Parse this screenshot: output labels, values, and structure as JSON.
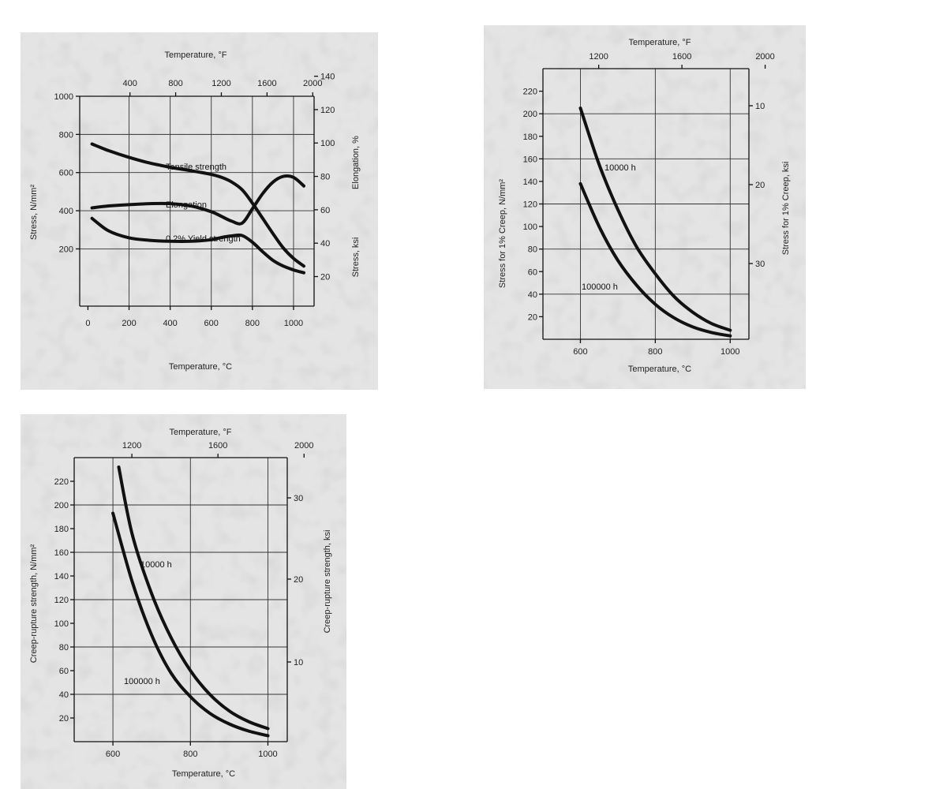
{
  "chart_data": [
    {
      "type": "line",
      "axes": {
        "x_bottom": {
          "label": "Temperature, °C",
          "range": [
            -40,
            1100
          ],
          "ticks": [
            "0",
            "200",
            "400",
            "600",
            "800",
            "1000"
          ]
        },
        "x_top": {
          "label": "Temperature, °F",
          "ticks": [
            "400",
            "800",
            "1200",
            "1600",
            "2000"
          ]
        },
        "y_left": {
          "label": "Stress, N/mm²",
          "range": [
            -100,
            1000
          ],
          "ticks": [
            "200",
            "400",
            "600",
            "800",
            "1000"
          ]
        },
        "y_right": {
          "label_elongation": "Elongation, %",
          "label_stress": "Stress, ksi",
          "ticks": [
            "20",
            "40",
            "60",
            "80",
            "100",
            "120",
            "140"
          ]
        }
      },
      "grid": true,
      "series": [
        {
          "name": "Tensile strength",
          "axis": "left",
          "x": [
            20,
            100,
            200,
            300,
            400,
            500,
            600,
            650,
            700,
            750,
            800,
            850,
            900,
            950,
            1000,
            1050
          ],
          "y": [
            750,
            715,
            680,
            650,
            628,
            610,
            590,
            575,
            550,
            510,
            440,
            360,
            280,
            205,
            150,
            110
          ]
        },
        {
          "name": "Elongation",
          "axis": "left",
          "x": [
            20,
            100,
            200,
            300,
            400,
            500,
            600,
            650,
            700,
            750,
            800,
            850,
            900,
            950,
            1000,
            1050
          ],
          "y": [
            415,
            425,
            432,
            437,
            437,
            425,
            395,
            370,
            345,
            335,
            410,
            490,
            550,
            580,
            575,
            530
          ]
        },
        {
          "name": "0.2% Yield strength",
          "axis": "left",
          "x": [
            20,
            100,
            200,
            300,
            400,
            500,
            600,
            650,
            700,
            750,
            800,
            850,
            900,
            950,
            1000,
            1050
          ],
          "y": [
            360,
            295,
            258,
            245,
            240,
            240,
            248,
            260,
            268,
            270,
            235,
            185,
            140,
            110,
            90,
            75
          ]
        }
      ]
    },
    {
      "type": "line",
      "axes": {
        "x_bottom": {
          "label": "Temperature, °C",
          "range": [
            500,
            1050
          ],
          "ticks": [
            "600",
            "800",
            "1000"
          ]
        },
        "x_top": {
          "label": "Temperature, °F",
          "ticks": [
            "1200",
            "1600",
            "2000"
          ]
        },
        "y_left": {
          "label": "Stress for 1% Creep, N/mm²",
          "range": [
            0,
            240
          ],
          "ticks": [
            "20",
            "40",
            "60",
            "80",
            "100",
            "120",
            "140",
            "160",
            "180",
            "200",
            "220"
          ]
        },
        "y_right": {
          "label": "Stress for 1% Creep, ksi",
          "ticks": [
            "10",
            "20",
            "30"
          ]
        }
      },
      "grid": true,
      "series": [
        {
          "name": "10000 h",
          "axis": "left",
          "x": [
            600,
            650,
            700,
            750,
            800,
            850,
            900,
            950,
            1000
          ],
          "y": [
            205,
            155,
            115,
            82,
            58,
            38,
            24,
            14,
            8
          ]
        },
        {
          "name": "100000 h",
          "axis": "left",
          "x": [
            600,
            650,
            700,
            750,
            800,
            850,
            900,
            950,
            1000
          ],
          "y": [
            138,
            100,
            70,
            48,
            31,
            19,
            11,
            6,
            3
          ]
        }
      ]
    },
    {
      "type": "line",
      "axes": {
        "x_bottom": {
          "label": "Temperature, °C",
          "range": [
            500,
            1050
          ],
          "ticks": [
            "600",
            "800",
            "1000"
          ]
        },
        "x_top": {
          "label": "Temperature, °F",
          "ticks": [
            "1200",
            "1600",
            "2000"
          ]
        },
        "y_left": {
          "label": "Creep-rupture strength, N/mm²",
          "range": [
            0,
            240
          ],
          "ticks": [
            "20",
            "40",
            "60",
            "80",
            "100",
            "120",
            "140",
            "160",
            "180",
            "200",
            "220"
          ]
        },
        "y_right": {
          "label": "Creep-rupture strength, ksi",
          "ticks": [
            "10",
            "20",
            "30"
          ]
        }
      },
      "grid": true,
      "series": [
        {
          "name": "10000 h",
          "axis": "left",
          "x": [
            615,
            650,
            700,
            750,
            800,
            850,
            900,
            950,
            1000
          ],
          "y": [
            232,
            175,
            125,
            88,
            60,
            40,
            26,
            17,
            11
          ]
        },
        {
          "name": "100000 h",
          "axis": "left",
          "x": [
            600,
            650,
            700,
            750,
            800,
            850,
            900,
            950,
            1000
          ],
          "y": [
            193,
            135,
            90,
            58,
            38,
            24,
            15,
            9,
            5
          ]
        }
      ]
    }
  ]
}
